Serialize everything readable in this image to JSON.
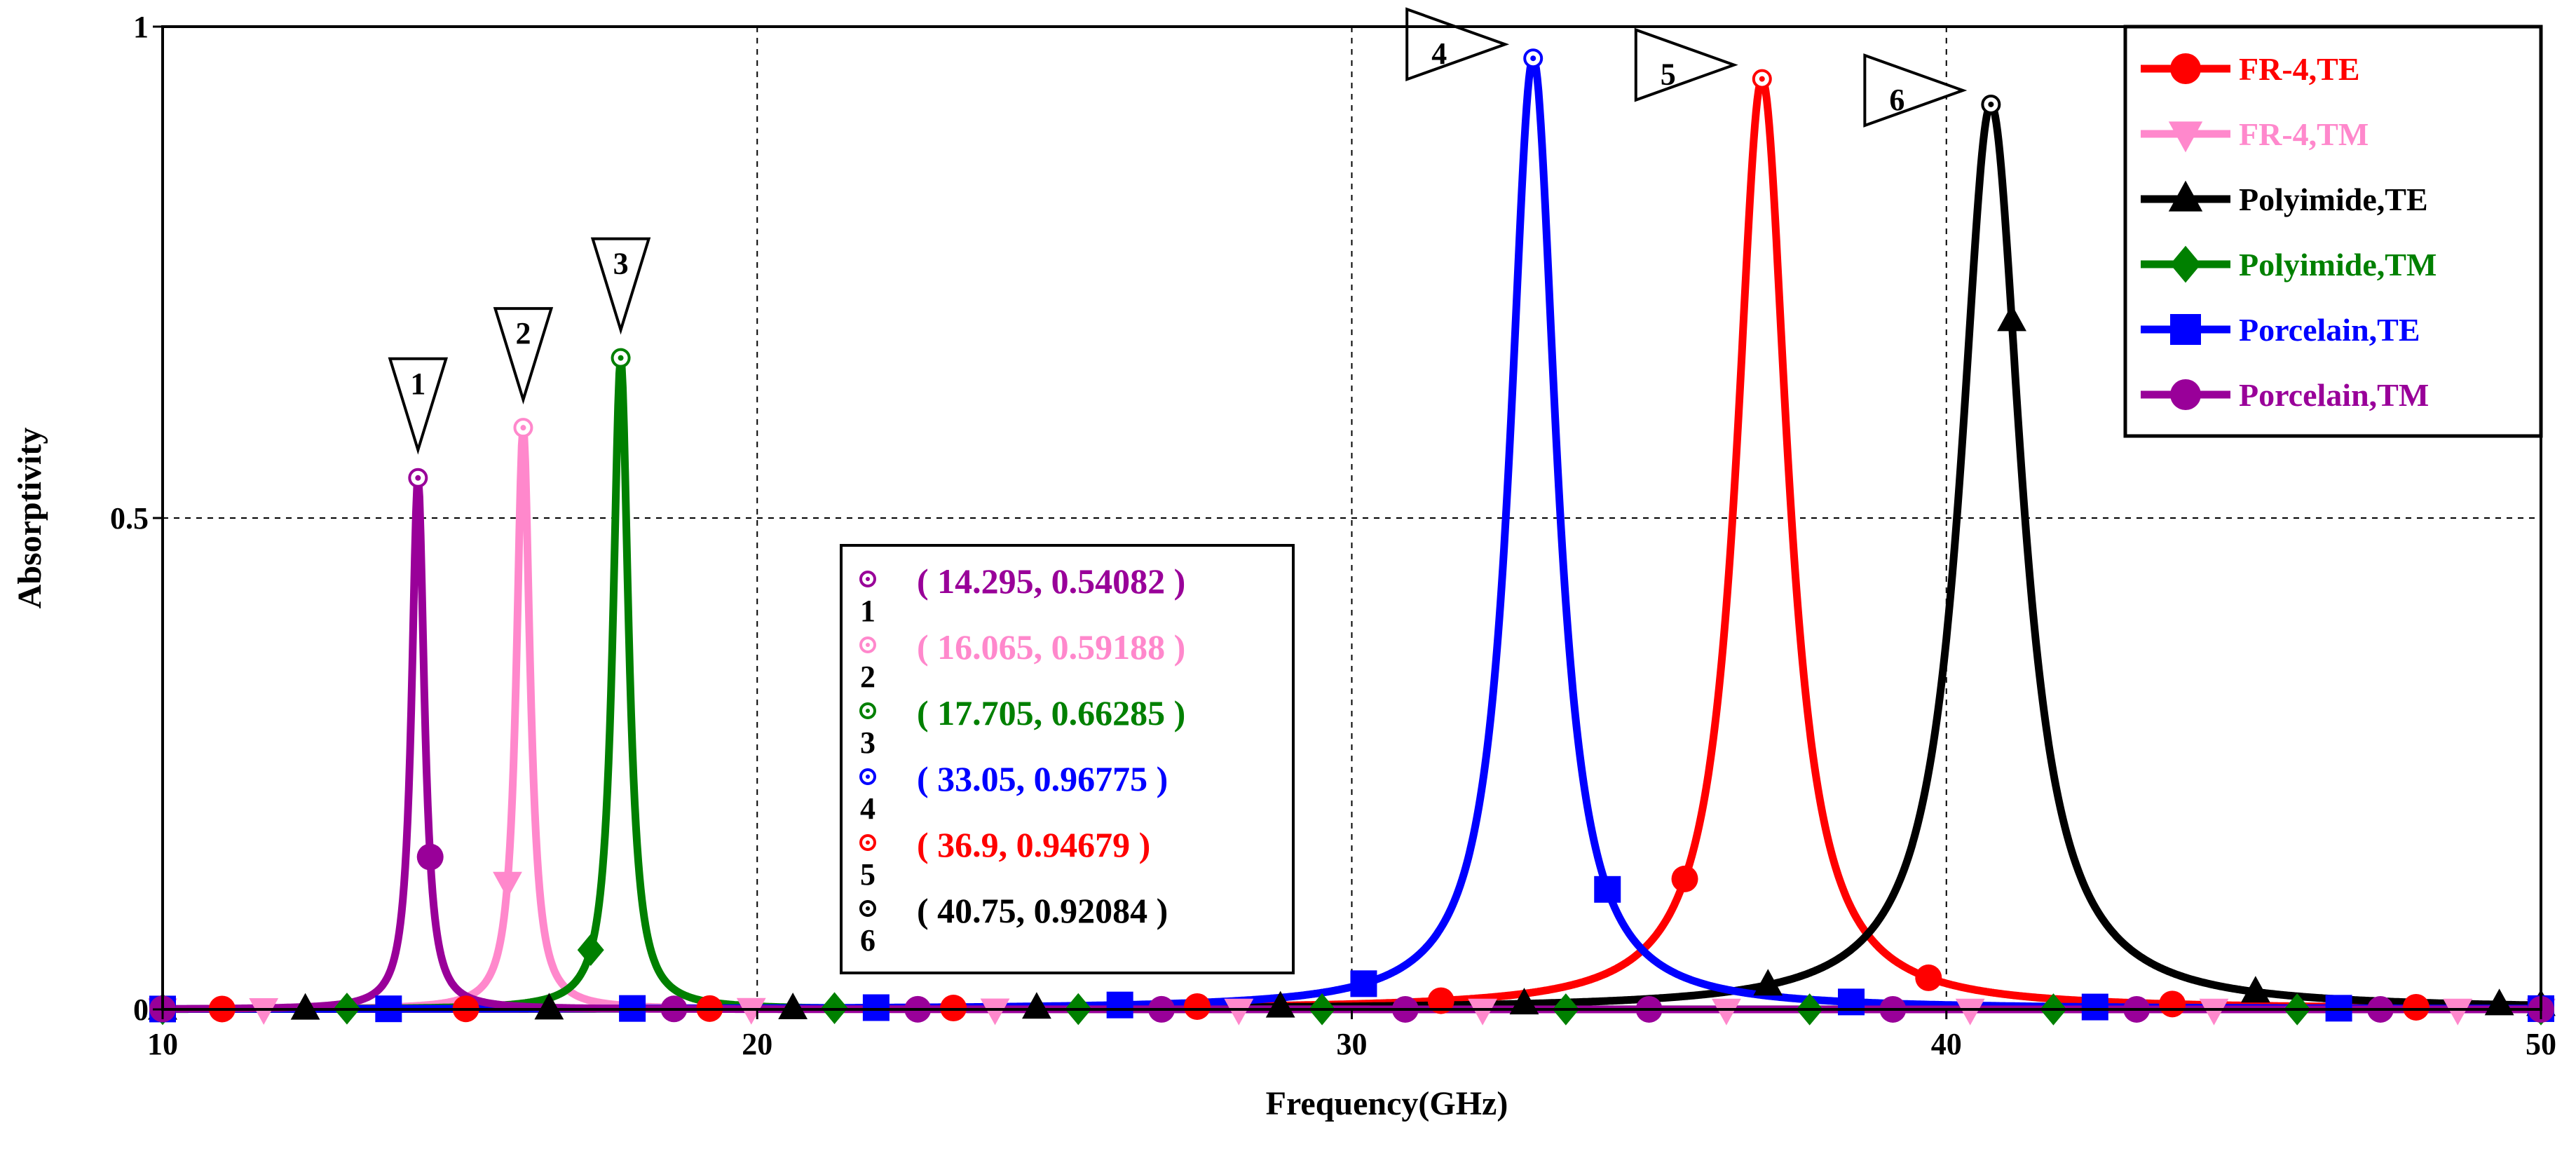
{
  "chart_data": {
    "type": "line",
    "title": "",
    "xlabel": "Frequency(GHz)",
    "ylabel": "Absorptivity",
    "xlim": [
      10,
      50
    ],
    "ylim": [
      0,
      1
    ],
    "x_ticks": [
      "10",
      "20",
      "30",
      "40",
      "50"
    ],
    "y_ticks": [
      "0",
      "0.5",
      "1"
    ],
    "grid": true,
    "legend_position": "top-right",
    "series": [
      {
        "name": "FR-4,TE",
        "color": "#ff0000",
        "marker": "circle",
        "peak_freq": 36.9,
        "peak_value": 0.94679,
        "width": 1.05
      },
      {
        "name": "FR-4,TM",
        "color": "#ff88cc",
        "marker": "triangle-down",
        "peak_freq": 16.065,
        "peak_value": 0.59188,
        "width": 0.28
      },
      {
        "name": "Polyimide,TE",
        "color": "#000000",
        "marker": "triangle-up",
        "peak_freq": 40.75,
        "peak_value": 0.92084,
        "width": 1.25
      },
      {
        "name": "Polyimide,TM",
        "color": "#008000",
        "marker": "diamond",
        "peak_freq": 17.705,
        "peak_value": 0.66285,
        "width": 0.32
      },
      {
        "name": "Porcelain,TE",
        "color": "#0000ff",
        "marker": "square",
        "peak_freq": 33.05,
        "peak_value": 0.96775,
        "width": 0.95
      },
      {
        "name": "Porcelain,TM",
        "color": "#990099",
        "marker": "circle",
        "peak_freq": 14.295,
        "peak_value": 0.54082,
        "width": 0.26
      }
    ],
    "markers": [
      {
        "id": "1",
        "x": 14.295,
        "y": 0.54082,
        "text": "( 14.295, 0.54082 )",
        "color": "#990099"
      },
      {
        "id": "2",
        "x": 16.065,
        "y": 0.59188,
        "text": "( 16.065, 0.59188 )",
        "color": "#ff88cc"
      },
      {
        "id": "3",
        "x": 17.705,
        "y": 0.66285,
        "text": "( 17.705, 0.66285 )",
        "color": "#008000"
      },
      {
        "id": "4",
        "x": 33.05,
        "y": 0.96775,
        "text": "( 33.05, 0.96775 )",
        "color": "#0000ff"
      },
      {
        "id": "5",
        "x": 36.9,
        "y": 0.94679,
        "text": "( 36.9, 0.94679 )",
        "color": "#ff0000"
      },
      {
        "id": "6",
        "x": 40.75,
        "y": 0.92084,
        "text": "( 40.75, 0.92084 )",
        "color": "#000000"
      }
    ]
  }
}
